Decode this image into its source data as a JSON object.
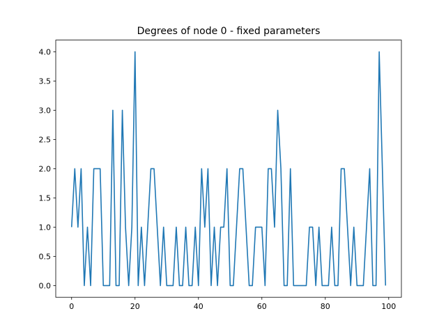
{
  "chart_data": {
    "type": "line",
    "title": "Degrees of node 0 - fixed parameters",
    "xlabel": "",
    "ylabel": "",
    "xlim": [
      -5,
      104
    ],
    "ylim": [
      -0.2,
      4.2
    ],
    "xticks": [
      0,
      20,
      40,
      60,
      80,
      100
    ],
    "yticks": [
      0.0,
      0.5,
      1.0,
      1.5,
      2.0,
      2.5,
      3.0,
      3.5,
      4.0
    ],
    "xtick_labels": [
      "0",
      "20",
      "40",
      "60",
      "80",
      "100"
    ],
    "ytick_labels": [
      "0.0",
      "0.5",
      "1.0",
      "1.5",
      "2.0",
      "2.5",
      "3.0",
      "3.5",
      "4.0"
    ],
    "grid": false,
    "series": [
      {
        "color": "#1f77b4",
        "x": [
          0,
          1,
          2,
          3,
          4,
          5,
          6,
          7,
          8,
          9,
          10,
          11,
          12,
          13,
          14,
          15,
          16,
          17,
          18,
          19,
          20,
          21,
          22,
          23,
          24,
          25,
          26,
          27,
          28,
          29,
          30,
          31,
          32,
          33,
          34,
          35,
          36,
          37,
          38,
          39,
          40,
          41,
          42,
          43,
          44,
          45,
          46,
          47,
          48,
          49,
          50,
          51,
          52,
          53,
          54,
          55,
          56,
          57,
          58,
          59,
          60,
          61,
          62,
          63,
          64,
          65,
          66,
          67,
          68,
          69,
          70,
          71,
          72,
          73,
          74,
          75,
          76,
          77,
          78,
          79,
          80,
          81,
          82,
          83,
          84,
          85,
          86,
          87,
          88,
          89,
          90,
          91,
          92,
          93,
          94,
          95,
          96,
          97,
          98,
          99
        ],
        "y": [
          1,
          2,
          1,
          2,
          0,
          1,
          0,
          2,
          2,
          2,
          0,
          0,
          0,
          3,
          0,
          0,
          3,
          1,
          0,
          1,
          4,
          0,
          1,
          0,
          1,
          2,
          2,
          1,
          0,
          1,
          0,
          0,
          0,
          1,
          0,
          0,
          1,
          0,
          0,
          1,
          0,
          2,
          1,
          2,
          0,
          1,
          0,
          1,
          1,
          2,
          0,
          0,
          1,
          2,
          2,
          1,
          0,
          0,
          1,
          1,
          1,
          0,
          2,
          2,
          1,
          3,
          2,
          0,
          0,
          2,
          0,
          0,
          0,
          0,
          0,
          1,
          1,
          0,
          1,
          0,
          0,
          0,
          1,
          0,
          0,
          2,
          2,
          1,
          0,
          1,
          0,
          0,
          0,
          1,
          2,
          0,
          0,
          4,
          2,
          0
        ]
      }
    ]
  }
}
